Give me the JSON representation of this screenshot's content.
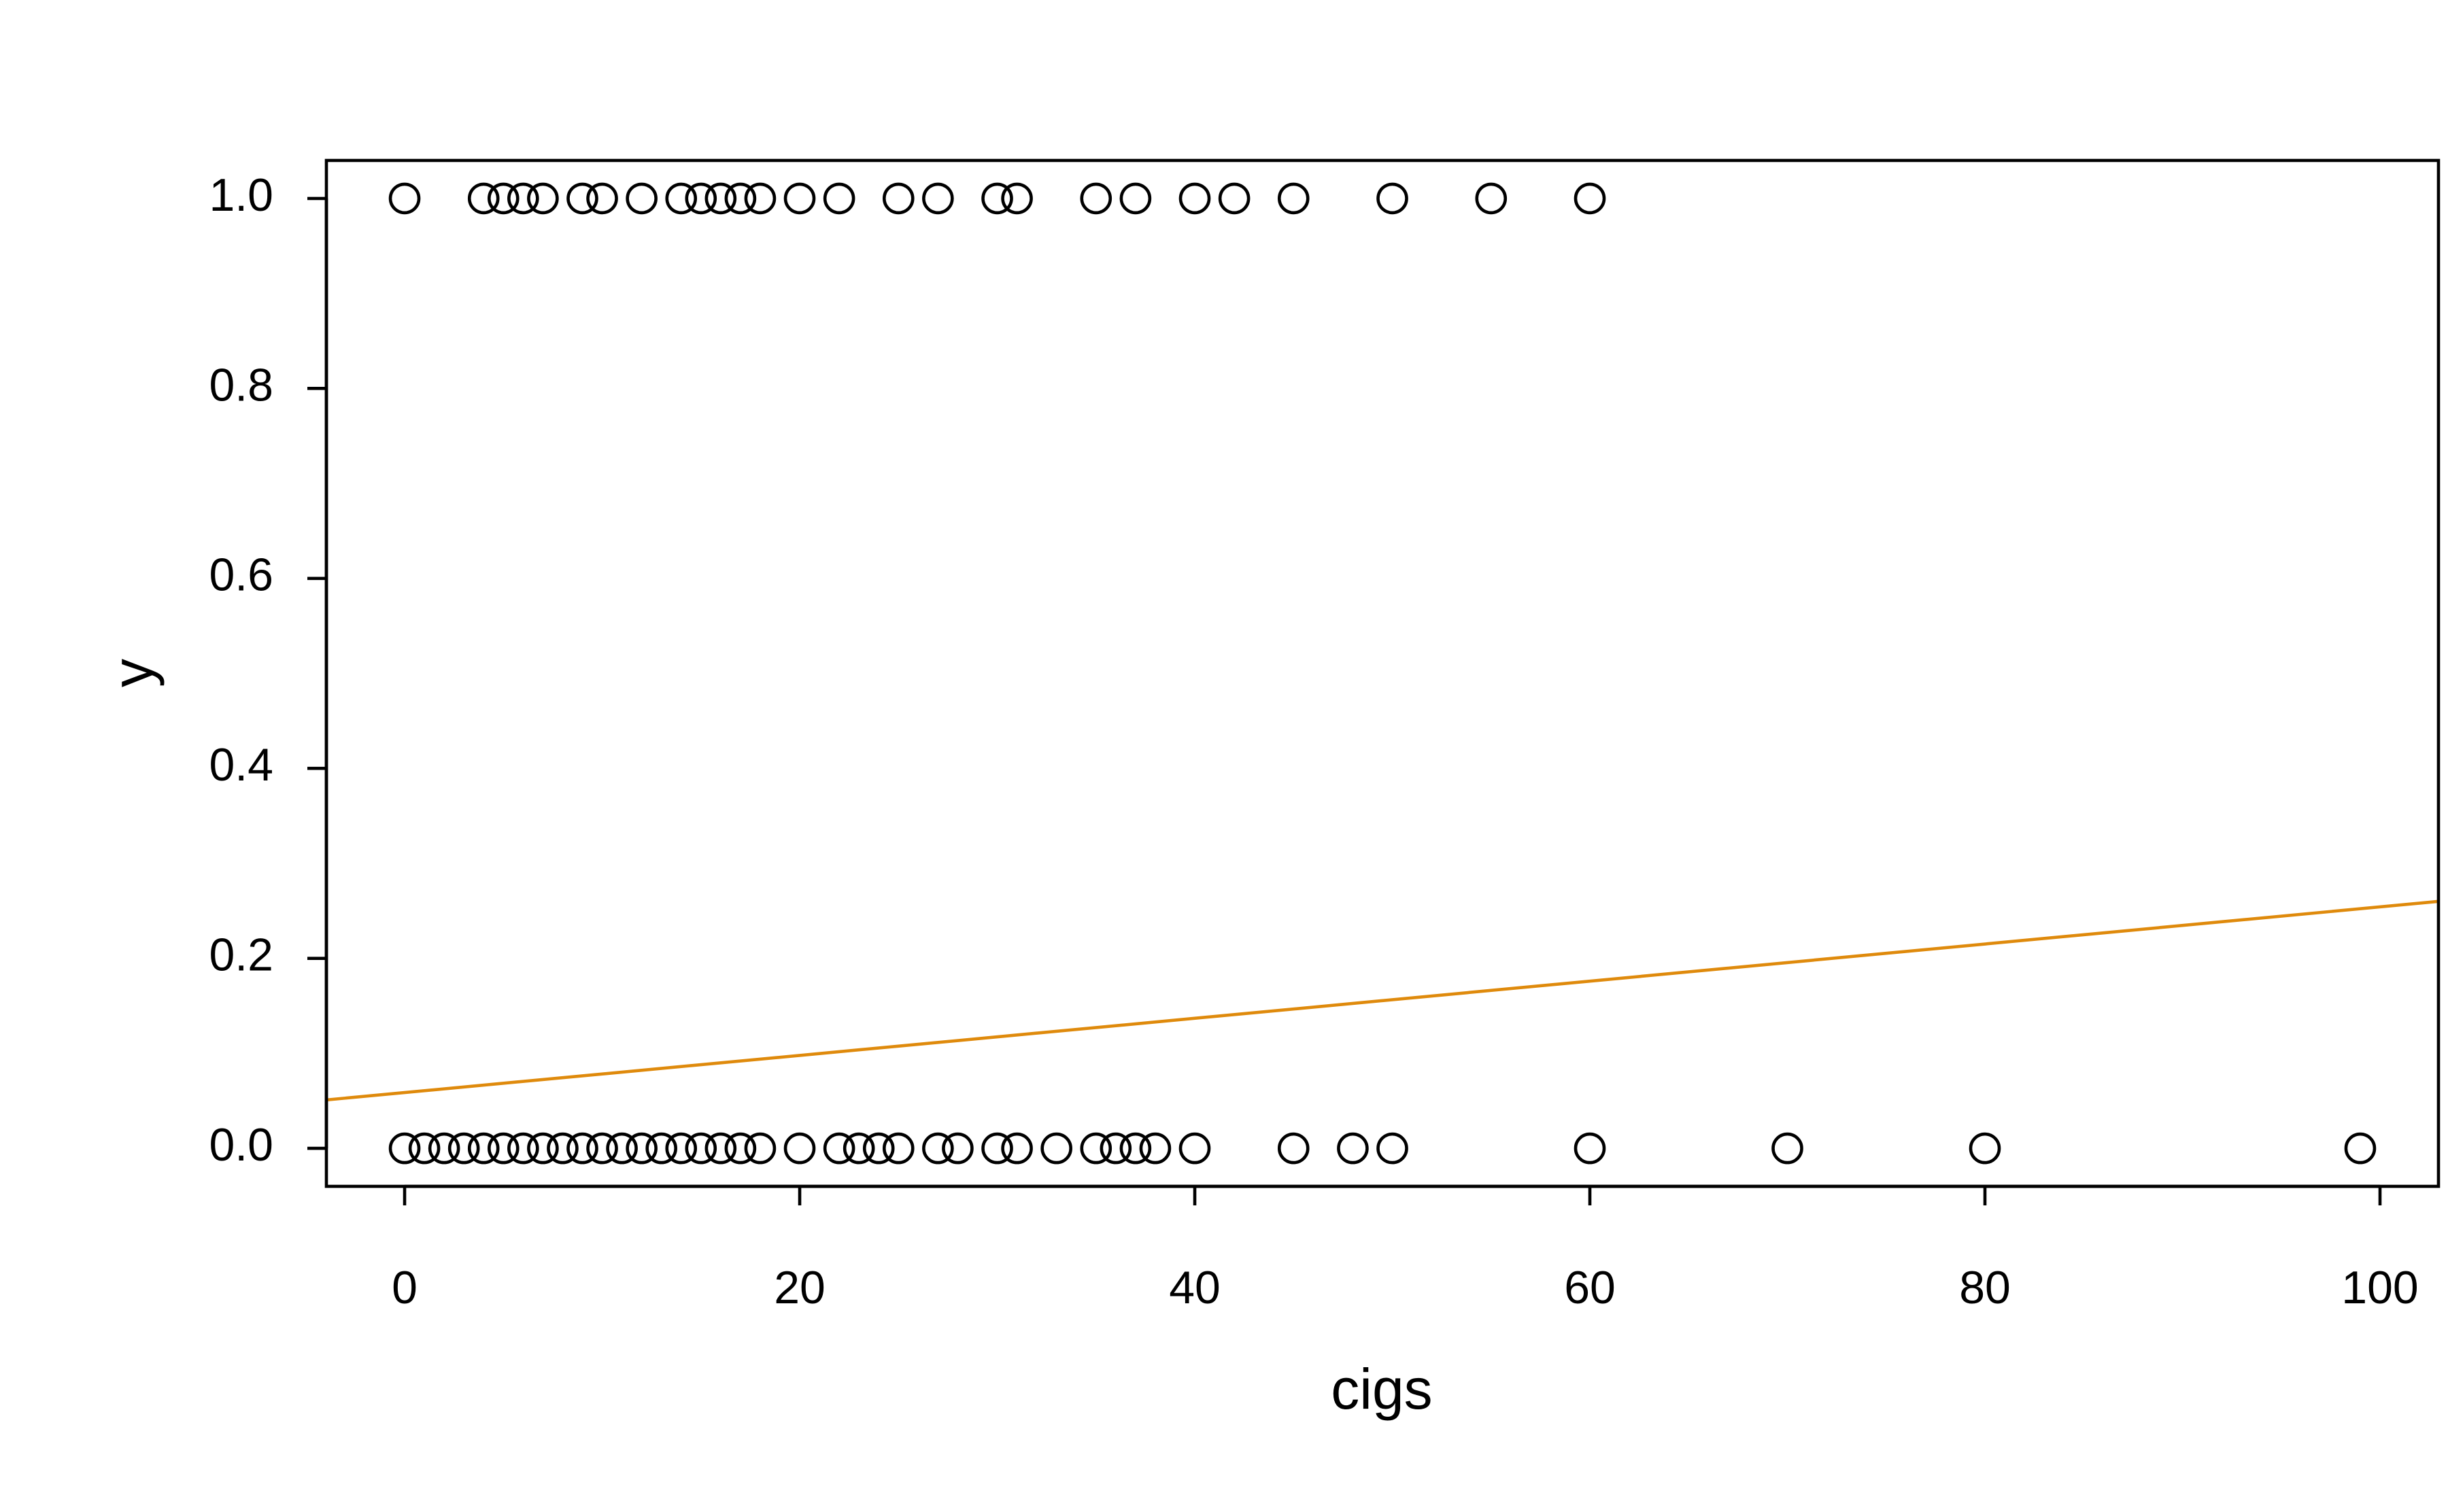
{
  "chart_data": {
    "type": "scatter",
    "xlabel": "cigs",
    "ylabel": "y",
    "xlim": [
      -3.96,
      102.96
    ],
    "ylim": [
      -0.04,
      1.04
    ],
    "xticks": [
      0,
      20,
      40,
      60,
      80,
      100
    ],
    "yticks": [
      {
        "value": 0,
        "label": "0.0"
      },
      0.2,
      0.4,
      0.6,
      0.8,
      {
        "value": 1,
        "label": "1.0"
      }
    ],
    "series": [
      {
        "type": "scatter",
        "color": "#000000",
        "x": [
          0,
          4,
          5,
          6,
          7,
          9,
          10,
          12,
          14,
          15,
          16,
          17,
          18,
          20,
          22,
          25,
          27,
          30,
          31,
          35,
          37,
          40,
          42,
          45,
          50,
          55,
          60,
          0,
          1,
          2,
          3,
          4,
          5,
          6,
          7,
          8,
          9,
          10,
          11,
          12,
          13,
          14,
          15,
          16,
          17,
          18,
          20,
          22,
          23,
          24,
          25,
          27,
          28,
          30,
          31,
          33,
          35,
          36,
          37,
          38,
          40,
          45,
          48,
          50,
          60,
          70,
          80,
          99
        ],
        "values": [
          1,
          1,
          1,
          1,
          1,
          1,
          1,
          1,
          1,
          1,
          1,
          1,
          1,
          1,
          1,
          1,
          1,
          1,
          1,
          1,
          1,
          1,
          1,
          1,
          1,
          1,
          1,
          0,
          0,
          0,
          0,
          0,
          0,
          0,
          0,
          0,
          0,
          0,
          0,
          0,
          0,
          0,
          0,
          0,
          0,
          0,
          0,
          0,
          0,
          0,
          0,
          0,
          0,
          0,
          0,
          0,
          0,
          0,
          0,
          0,
          0,
          0,
          0,
          0,
          0,
          0,
          0,
          0
        ]
      },
      {
        "type": "line",
        "color": "#df8a0c",
        "x": [
          -3.96,
          102.96
        ],
        "values": [
          0.051,
          0.26
        ]
      }
    ]
  }
}
